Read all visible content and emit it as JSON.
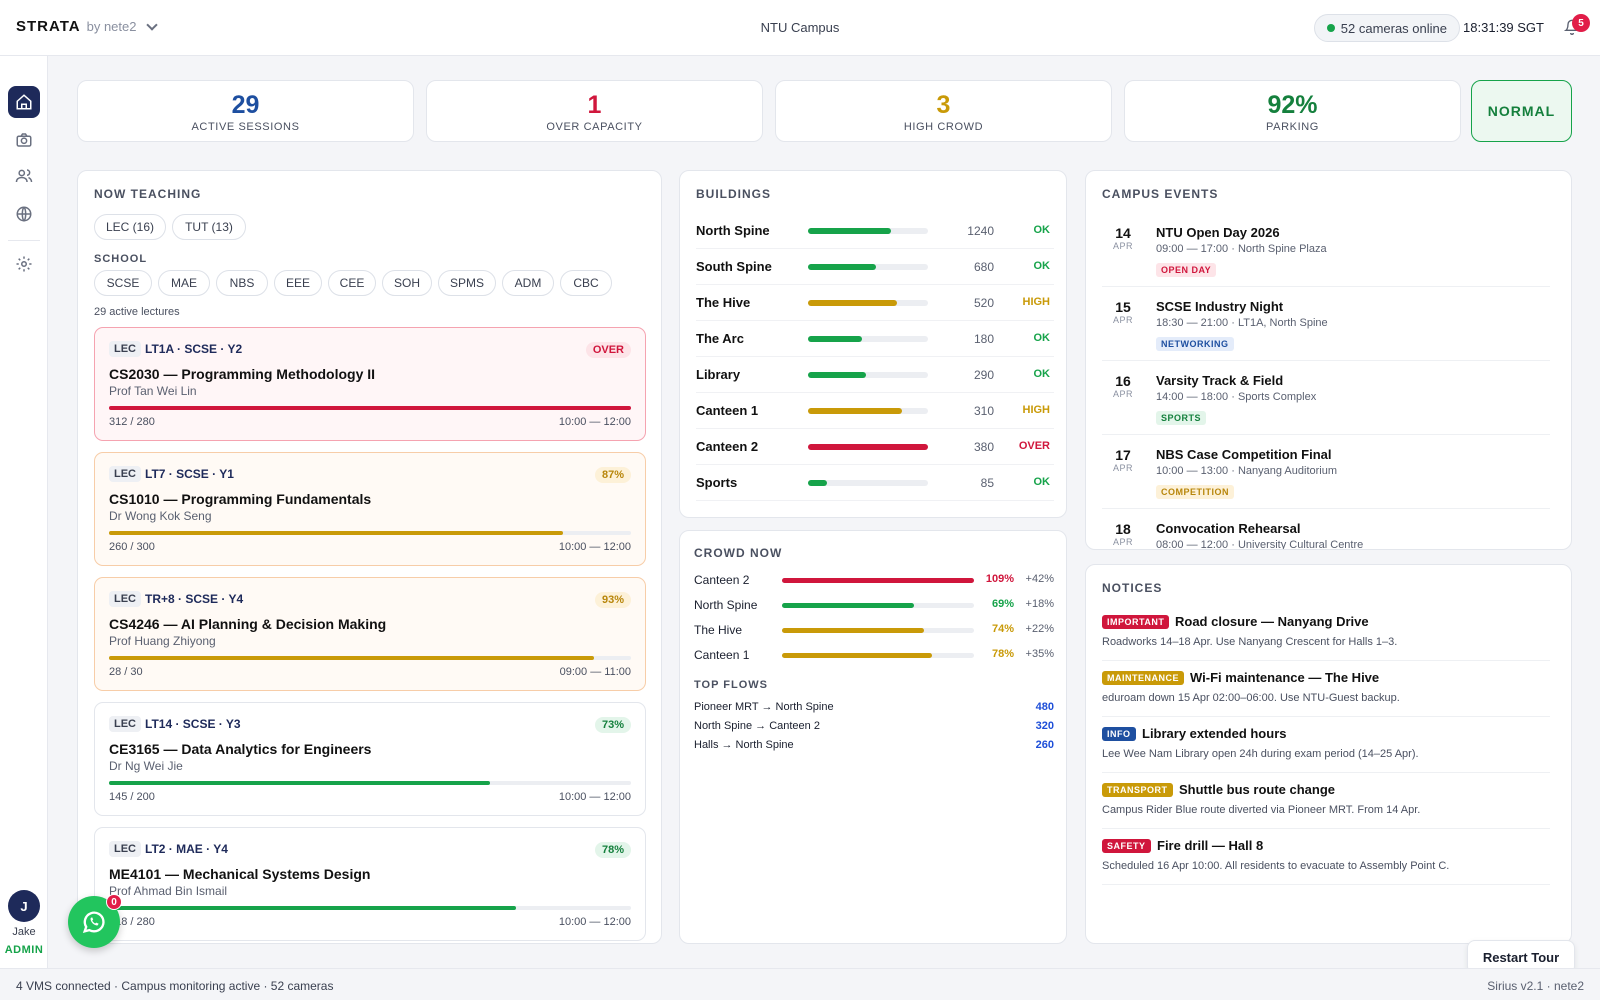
{
  "header": {
    "brand": "STRATA",
    "by": "by nete2",
    "campus": "NTU Campus",
    "cameras": "52 cameras online",
    "clock": "18:31:39 SGT",
    "notif_count": "5"
  },
  "sidebar": {
    "items": [
      {
        "icon": "home-icon"
      },
      {
        "icon": "camera-icon"
      },
      {
        "icon": "users-icon"
      },
      {
        "icon": "globe-icon"
      },
      {
        "icon": "gear-icon"
      }
    ],
    "user_initial": "J",
    "user_name": "Jake",
    "user_role": "ADMIN"
  },
  "kpis": [
    {
      "value": "29",
      "label": "ACTIVE SESSIONS",
      "color": "#1e4fa0"
    },
    {
      "value": "1",
      "label": "OVER CAPACITY",
      "color": "#d0163c"
    },
    {
      "value": "3",
      "label": "HIGH CROWD",
      "color": "#c99a08"
    },
    {
      "value": "92%",
      "label": "PARKING",
      "color": "#15803d"
    }
  ],
  "status": "NORMAL",
  "teaching": {
    "title": "NOW TEACHING",
    "type_filters": [
      "LEC (16)",
      "TUT (13)"
    ],
    "school_label": "SCHOOL",
    "schools": [
      "SCSE",
      "MAE",
      "NBS",
      "EEE",
      "CEE",
      "SOH",
      "SPMS",
      "ADM",
      "CBC"
    ],
    "count_text": "29 active lectures",
    "lectures": [
      {
        "tag": "LEC",
        "meta": "LT1A · SCSE · Y2",
        "pct": "OVER",
        "title": "CS2030 — Programming Methodology II",
        "prof": "Prof Tan Wei Lin",
        "count": "312 / 280",
        "time": "10:00 — 12:00",
        "fill": 1.0,
        "state": "over"
      },
      {
        "tag": "LEC",
        "meta": "LT7 · SCSE · Y1",
        "pct": "87%",
        "title": "CS1010 — Programming Fundamentals",
        "prof": "Dr Wong Kok Seng",
        "count": "260 / 300",
        "time": "10:00 — 12:00",
        "fill": 0.87,
        "state": "warn"
      },
      {
        "tag": "LEC",
        "meta": "TR+8 · SCSE · Y4",
        "pct": "93%",
        "title": "CS4246 — AI Planning & Decision Making",
        "prof": "Prof Huang Zhiyong",
        "count": "28 / 30",
        "time": "09:00 — 11:00",
        "fill": 0.93,
        "state": "warn"
      },
      {
        "tag": "LEC",
        "meta": "LT14 · SCSE · Y3",
        "pct": "73%",
        "title": "CE3165 — Data Analytics for Engineers",
        "prof": "Dr Ng Wei Jie",
        "count": "145 / 200",
        "time": "10:00 — 12:00",
        "fill": 0.73,
        "state": "ok"
      },
      {
        "tag": "LEC",
        "meta": "LT2 · MAE · Y4",
        "pct": "78%",
        "title": "ME4101 — Mechanical Systems Design",
        "prof": "Prof Ahmad Bin Ismail",
        "count": "218 / 280",
        "time": "10:00 — 12:00",
        "fill": 0.78,
        "state": "ok"
      }
    ]
  },
  "buildings": {
    "title": "BUILDINGS",
    "rows": [
      {
        "name": "North Spine",
        "count": "1240",
        "status": "OK",
        "fill": 0.69,
        "state": "ok"
      },
      {
        "name": "South Spine",
        "count": "680",
        "status": "OK",
        "fill": 0.57,
        "state": "ok"
      },
      {
        "name": "The Hive",
        "count": "520",
        "status": "HIGH",
        "fill": 0.74,
        "state": "high"
      },
      {
        "name": "The Arc",
        "count": "180",
        "status": "OK",
        "fill": 0.45,
        "state": "ok"
      },
      {
        "name": "Library",
        "count": "290",
        "status": "OK",
        "fill": 0.48,
        "state": "ok"
      },
      {
        "name": "Canteen 1",
        "count": "310",
        "status": "HIGH",
        "fill": 0.78,
        "state": "high"
      },
      {
        "name": "Canteen 2",
        "count": "380",
        "status": "OVER",
        "fill": 1.0,
        "state": "over"
      },
      {
        "name": "Sports",
        "count": "85",
        "status": "OK",
        "fill": 0.16,
        "state": "ok"
      }
    ]
  },
  "crowd": {
    "title": "CROWD NOW",
    "rows": [
      {
        "name": "Canteen 2",
        "pct": "109%",
        "delta": "+42%",
        "fill": 1.0,
        "state": "over"
      },
      {
        "name": "North Spine",
        "pct": "69%",
        "delta": "+18%",
        "fill": 0.69,
        "state": "ok"
      },
      {
        "name": "The Hive",
        "pct": "74%",
        "delta": "+22%",
        "fill": 0.74,
        "state": "high"
      },
      {
        "name": "Canteen 1",
        "pct": "78%",
        "delta": "+35%",
        "fill": 0.78,
        "state": "high"
      }
    ],
    "flows_title": "TOP FLOWS",
    "flows": [
      {
        "route": "Pioneer MRT → North Spine",
        "value": "480"
      },
      {
        "route": "North Spine → Canteen 2",
        "value": "320"
      },
      {
        "route": "Halls → North Spine",
        "value": "260"
      }
    ]
  },
  "events": {
    "title": "CAMPUS EVENTS",
    "items": [
      {
        "day": "14",
        "month": "APR",
        "title": "NTU Open Day 2026",
        "sub": "09:00 — 17:00 · North Spine Plaza",
        "badge": "OPEN DAY",
        "kind": "red"
      },
      {
        "day": "15",
        "month": "APR",
        "title": "SCSE Industry Night",
        "sub": "18:30 — 21:00 · LT1A, North Spine",
        "badge": "NETWORKING",
        "kind": "blue"
      },
      {
        "day": "16",
        "month": "APR",
        "title": "Varsity Track & Field",
        "sub": "14:00 — 18:00 · Sports Complex",
        "badge": "SPORTS",
        "kind": "green"
      },
      {
        "day": "17",
        "month": "APR",
        "title": "NBS Case Competition Final",
        "sub": "10:00 — 13:00 · Nanyang Auditorium",
        "badge": "COMPETITION",
        "kind": "amber"
      },
      {
        "day": "18",
        "month": "APR",
        "title": "Convocation Rehearsal",
        "sub": "08:00 — 12:00 · University Cultural Centre",
        "badge": "",
        "kind": "blue"
      }
    ]
  },
  "notices": {
    "title": "NOTICES",
    "items": [
      {
        "badge": "IMPORTANT",
        "color": "#d0163c",
        "title": "Road closure — Nanyang Drive",
        "sub": "Roadworks 14–18 Apr. Use Nanyang Crescent for Halls 1–3."
      },
      {
        "badge": "MAINTENANCE",
        "color": "#c99a08",
        "title": "Wi-Fi maintenance — The Hive",
        "sub": "eduroam down 15 Apr 02:00–06:00. Use NTU-Guest backup."
      },
      {
        "badge": "INFO",
        "color": "#1e4fa0",
        "title": "Library extended hours",
        "sub": "Lee Wee Nam Library open 24h during exam period (14–25 Apr)."
      },
      {
        "badge": "TRANSPORT",
        "color": "#c99a08",
        "title": "Shuttle bus route change",
        "sub": "Campus Rider Blue route diverted via Pioneer MRT. From 14 Apr."
      },
      {
        "badge": "SAFETY",
        "color": "#d0163c",
        "title": "Fire drill — Hall 8",
        "sub": "Scheduled 16 Apr 10:00. All residents to evacuate to Assembly Point C."
      }
    ]
  },
  "footer": {
    "left": "4 VMS connected · Campus monitoring active · 52 cameras",
    "right": "Sirius v2.1 · nete2"
  },
  "restart_label": "Restart Tour",
  "chat_badge": "0",
  "colors": {
    "ok": "#16a34a",
    "high": "#c99a08",
    "over": "#d0163c",
    "warn": "#c99a08"
  }
}
